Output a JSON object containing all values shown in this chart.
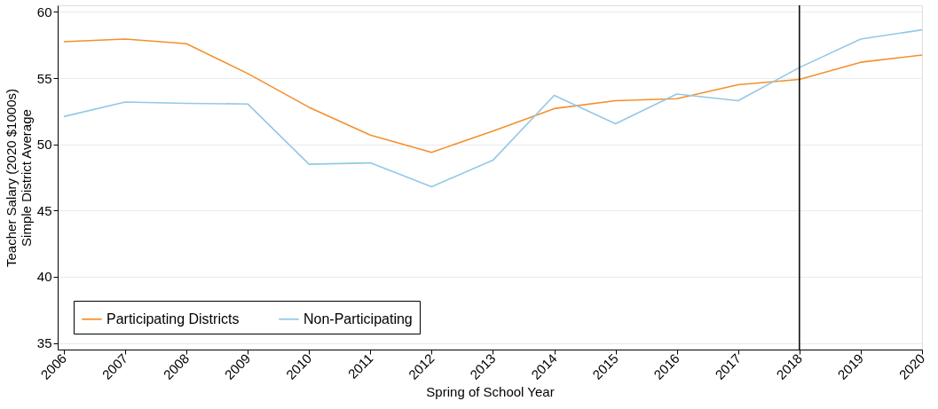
{
  "chart_data": {
    "type": "line",
    "xlabel": "Spring of School Year",
    "ylabel": "Teacher Salary (2020 $1000s)\nSimple District Average",
    "x": [
      2006,
      2007,
      2008,
      2009,
      2010,
      2011,
      2012,
      2013,
      2014,
      2015,
      2016,
      2017,
      2018,
      2019,
      2020
    ],
    "series": [
      {
        "name": "Participating Districts",
        "color": "#f4902c",
        "values": [
          57.75,
          57.95,
          57.6,
          55.35,
          52.8,
          50.7,
          49.4,
          51.0,
          52.7,
          53.3,
          53.45,
          54.5,
          54.9,
          56.2,
          56.75
        ]
      },
      {
        "name": "Non-Participating",
        "color": "#94c8e6",
        "values": [
          52.1,
          53.2,
          53.1,
          53.05,
          48.5,
          48.6,
          46.8,
          48.8,
          53.7,
          51.55,
          53.8,
          53.3,
          55.8,
          57.95,
          58.65
        ]
      }
    ],
    "xlim": [
      2005.9,
      2020
    ],
    "xticks": [
      2006,
      2007,
      2008,
      2009,
      2010,
      2011,
      2012,
      2013,
      2014,
      2015,
      2016,
      2017,
      2018,
      2019,
      2020
    ],
    "ylim": [
      34.5,
      60.5
    ],
    "yticks": [
      35,
      40,
      45,
      50,
      55,
      60
    ],
    "ref_lines": [
      {
        "axis": "x",
        "value": 2018,
        "color": "#000000"
      }
    ],
    "grid": "y",
    "legend": "bottom left",
    "line_style": "solid",
    "marker": "none"
  }
}
